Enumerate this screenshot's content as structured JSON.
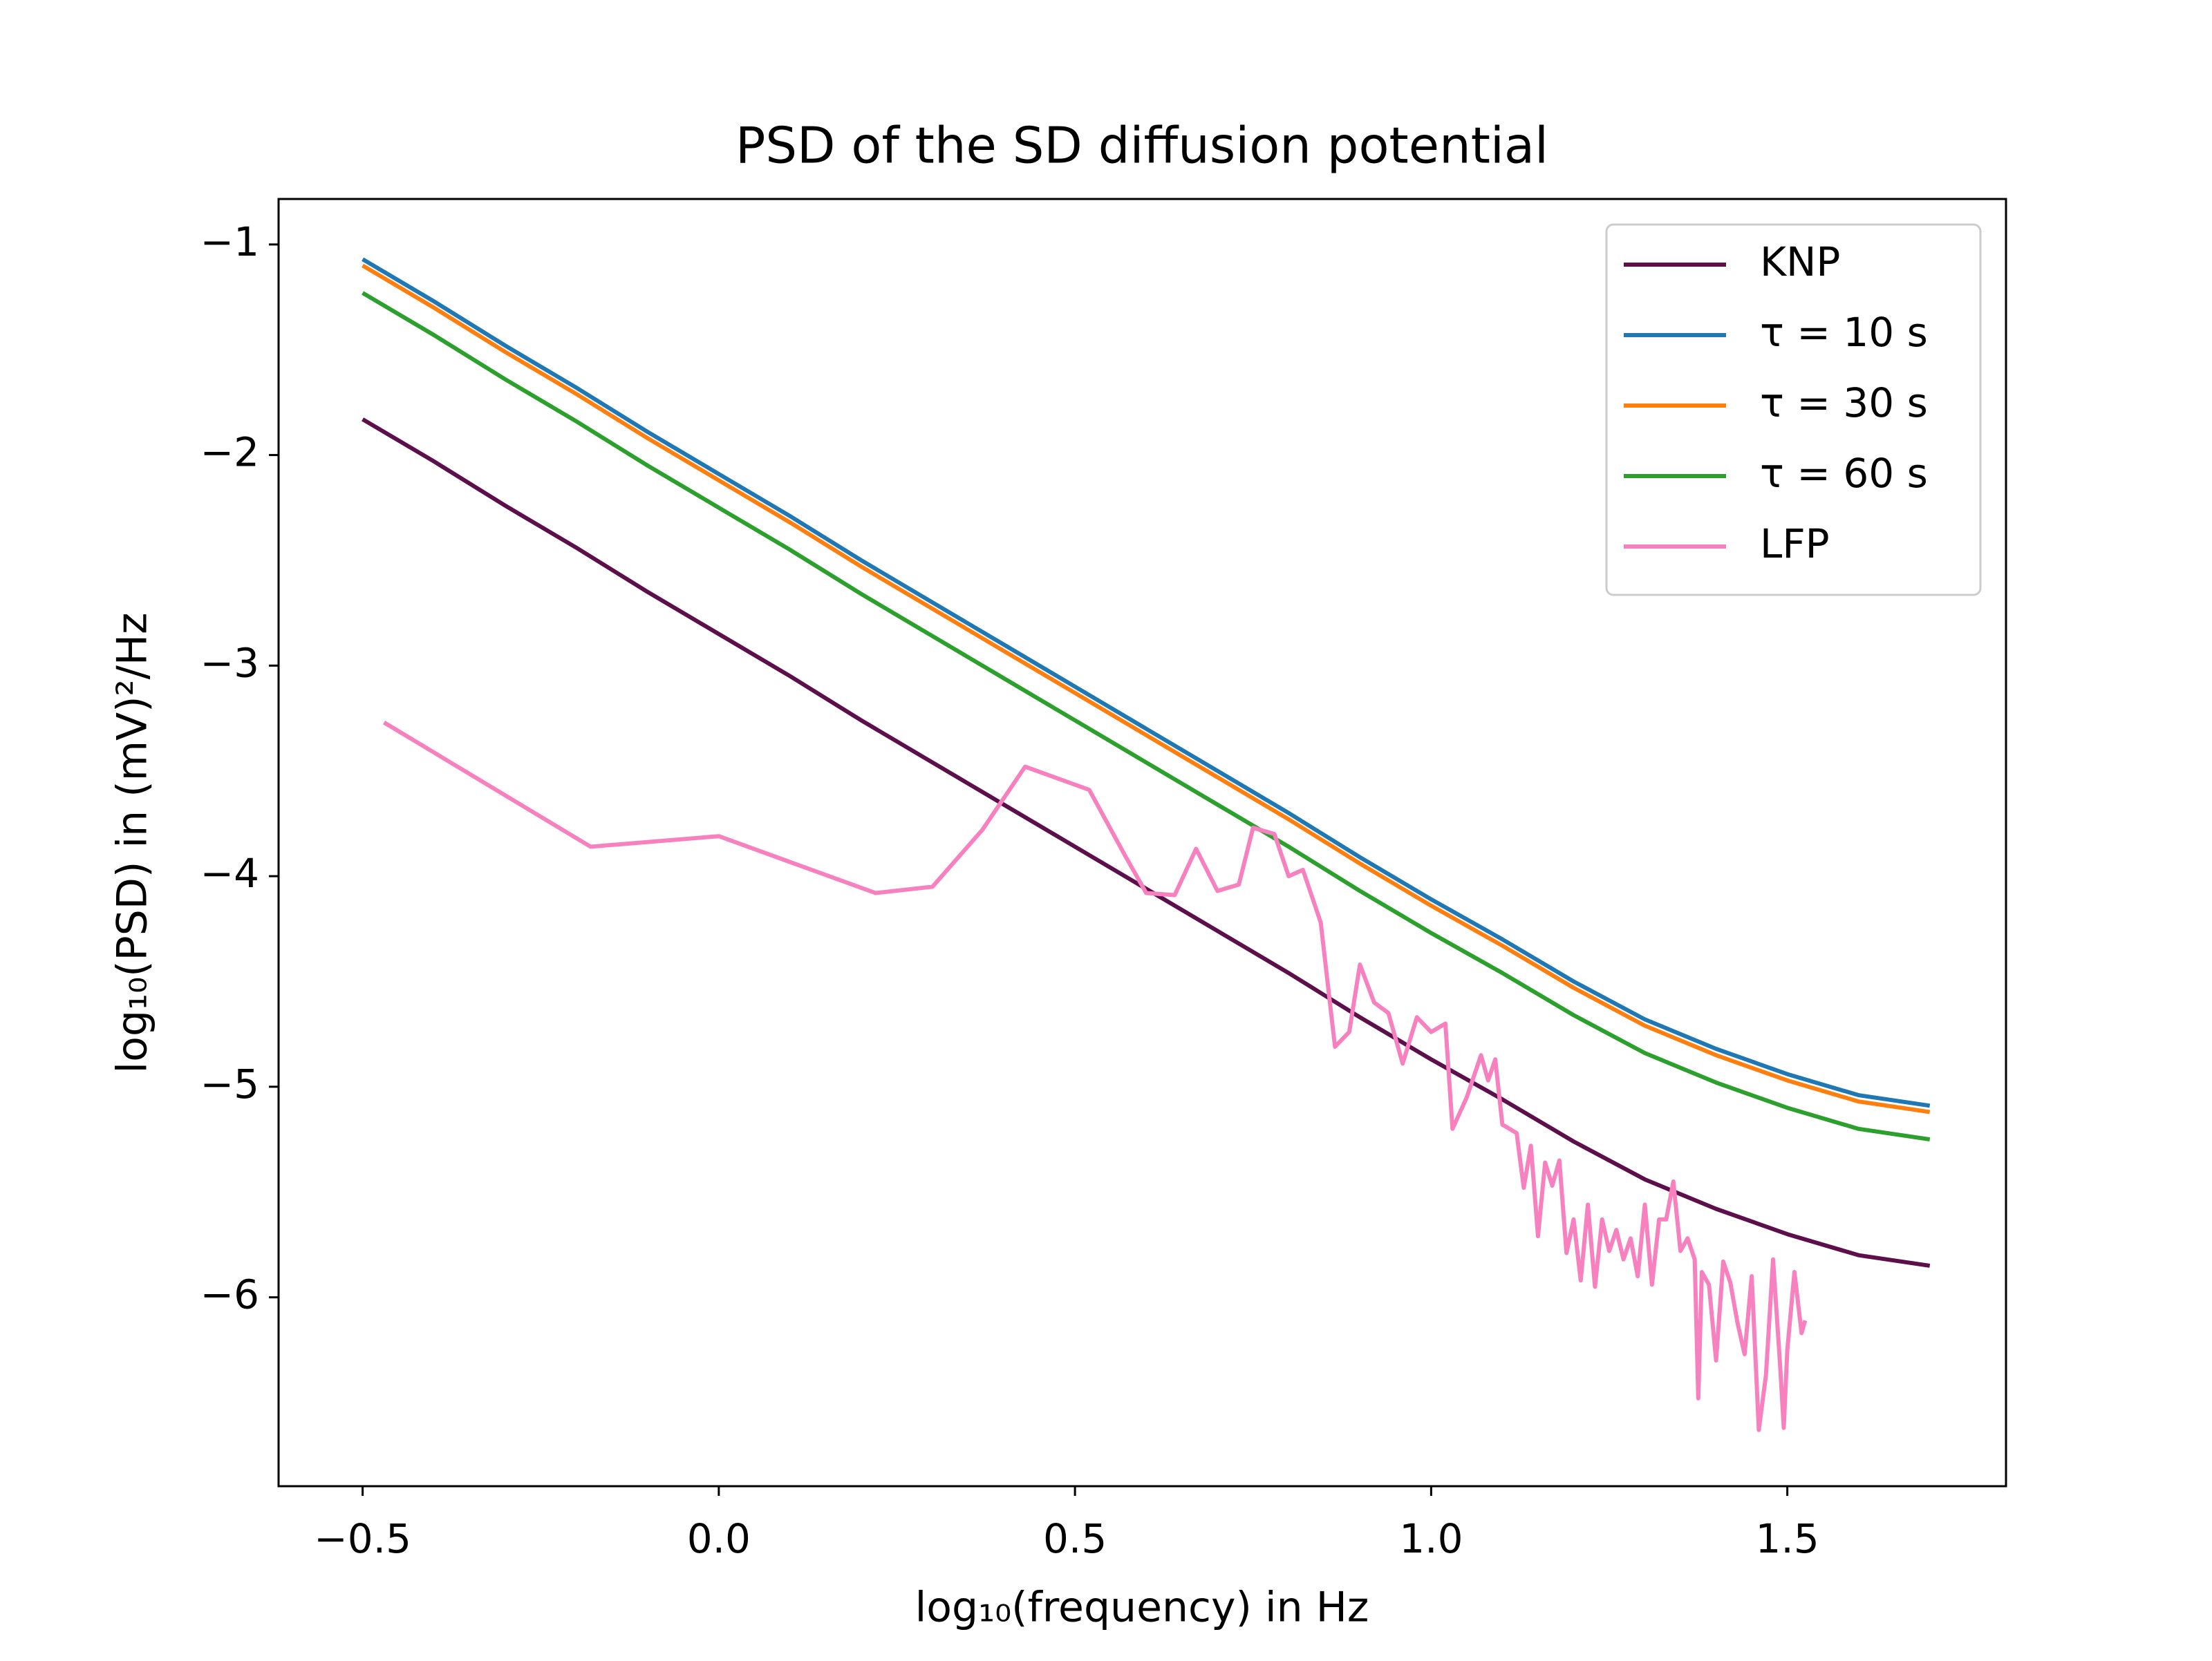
{
  "chart_data": {
    "type": "line",
    "title": "PSD of the SD diffusion potential",
    "x_label": "log₁₀(frequency) in Hz",
    "y_label": "log₁₀(PSD) in (mV)²/Hz",
    "xlim": [
      -0.618,
      1.807
    ],
    "ylim": [
      -6.897,
      -0.784
    ],
    "xticks": [
      {
        "value": -0.5,
        "label": "−0.5"
      },
      {
        "value": 0,
        "label": "0.0"
      },
      {
        "value": 0.5,
        "label": "0.5"
      },
      {
        "value": 1,
        "label": "1.0"
      },
      {
        "value": 1.5,
        "label": "1.5"
      }
    ],
    "yticks": [
      {
        "value": -6,
        "label": "−6"
      },
      {
        "value": -5,
        "label": "−5"
      },
      {
        "value": -4,
        "label": "−4"
      },
      {
        "value": -3,
        "label": "−3"
      },
      {
        "value": -2,
        "label": "−2"
      },
      {
        "value": -1,
        "label": "−1"
      }
    ],
    "grid": false,
    "legend": "upper right",
    "series": [
      {
        "name": "KNP",
        "color": "#5c0f4a",
        "x": [
          -0.5,
          -0.4,
          -0.3,
          -0.2,
          -0.1,
          0,
          0.1,
          0.2,
          0.3,
          0.4,
          0.5,
          0.6,
          0.7,
          0.8,
          0.9,
          1.0,
          1.1,
          1.2,
          1.3,
          1.4,
          1.5,
          1.6,
          1.7
        ],
        "values": [
          -1.83,
          -2.03,
          -2.24,
          -2.44,
          -2.65,
          -2.85,
          -3.05,
          -3.26,
          -3.46,
          -3.66,
          -3.86,
          -4.06,
          -4.26,
          -4.46,
          -4.67,
          -4.87,
          -5.06,
          -5.26,
          -5.44,
          -5.58,
          -5.7,
          -5.8,
          -5.85
        ]
      },
      {
        "name": "τ = 10 s",
        "color": "#1f77b4",
        "x": [
          -0.5,
          -0.4,
          -0.3,
          -0.2,
          -0.1,
          0,
          0.1,
          0.2,
          0.3,
          0.4,
          0.5,
          0.6,
          0.7,
          0.8,
          0.9,
          1.0,
          1.1,
          1.2,
          1.3,
          1.4,
          1.5,
          1.6,
          1.7
        ],
        "values": [
          -1.07,
          -1.27,
          -1.48,
          -1.68,
          -1.89,
          -2.09,
          -2.29,
          -2.5,
          -2.7,
          -2.9,
          -3.1,
          -3.3,
          -3.5,
          -3.7,
          -3.91,
          -4.11,
          -4.3,
          -4.5,
          -4.68,
          -4.82,
          -4.94,
          -5.04,
          -5.09
        ]
      },
      {
        "name": "τ = 30 s",
        "color": "#ff7f0e",
        "x": [
          -0.5,
          -0.4,
          -0.3,
          -0.2,
          -0.1,
          0,
          0.1,
          0.2,
          0.3,
          0.4,
          0.5,
          0.6,
          0.7,
          0.8,
          0.9,
          1.0,
          1.1,
          1.2,
          1.3,
          1.4,
          1.5,
          1.6,
          1.7
        ],
        "values": [
          -1.1,
          -1.3,
          -1.51,
          -1.71,
          -1.92,
          -2.12,
          -2.32,
          -2.53,
          -2.73,
          -2.93,
          -3.13,
          -3.33,
          -3.53,
          -3.73,
          -3.94,
          -4.14,
          -4.33,
          -4.53,
          -4.71,
          -4.85,
          -4.97,
          -5.07,
          -5.12
        ]
      },
      {
        "name": "τ = 60 s",
        "color": "#2ca02c",
        "x": [
          -0.5,
          -0.4,
          -0.3,
          -0.2,
          -0.1,
          0,
          0.1,
          0.2,
          0.3,
          0.4,
          0.5,
          0.6,
          0.7,
          0.8,
          0.9,
          1.0,
          1.1,
          1.2,
          1.3,
          1.4,
          1.5,
          1.6,
          1.7
        ],
        "values": [
          -1.23,
          -1.43,
          -1.64,
          -1.84,
          -2.05,
          -2.25,
          -2.45,
          -2.66,
          -2.86,
          -3.06,
          -3.26,
          -3.46,
          -3.66,
          -3.86,
          -4.07,
          -4.27,
          -4.46,
          -4.66,
          -4.84,
          -4.98,
          -5.1,
          -5.2,
          -5.25
        ]
      },
      {
        "name": "LFP",
        "color": "#f781bf",
        "x": [
          -0.47,
          -0.18,
          0,
          0.22,
          0.3,
          0.37,
          0.43,
          0.52,
          0.57,
          0.6,
          0.64,
          0.67,
          0.7,
          0.73,
          0.75,
          0.78,
          0.8,
          0.82,
          0.845,
          0.865,
          0.885,
          0.9,
          0.92,
          0.94,
          0.96,
          0.98,
          1.0,
          1.02,
          1.03,
          1.05,
          1.07,
          1.08,
          1.09,
          1.1,
          1.12,
          1.13,
          1.14,
          1.15,
          1.16,
          1.17,
          1.18,
          1.19,
          1.2,
          1.21,
          1.22,
          1.23,
          1.24,
          1.25,
          1.26,
          1.27,
          1.28,
          1.29,
          1.3,
          1.31,
          1.32,
          1.33,
          1.34,
          1.35,
          1.36,
          1.37,
          1.375,
          1.38,
          1.39,
          1.4,
          1.41,
          1.42,
          1.43,
          1.44,
          1.45,
          1.46,
          1.47,
          1.48,
          1.49,
          1.495,
          1.5,
          1.51,
          1.52,
          1.525
        ],
        "values": [
          -3.27,
          -3.86,
          -3.81,
          -4.08,
          -4.05,
          -3.78,
          -3.48,
          -3.59,
          -3.9,
          -4.08,
          -4.09,
          -3.87,
          -4.07,
          -4.04,
          -3.77,
          -3.8,
          -4.0,
          -3.97,
          -4.22,
          -4.81,
          -4.74,
          -4.42,
          -4.6,
          -4.65,
          -4.89,
          -4.67,
          -4.74,
          -4.7,
          -5.2,
          -5.05,
          -4.85,
          -4.97,
          -4.87,
          -5.18,
          -5.22,
          -5.48,
          -5.28,
          -5.71,
          -5.36,
          -5.47,
          -5.35,
          -5.79,
          -5.63,
          -5.92,
          -5.56,
          -5.95,
          -5.63,
          -5.78,
          -5.68,
          -5.82,
          -5.72,
          -5.9,
          -5.56,
          -5.94,
          -5.63,
          -5.63,
          -5.45,
          -5.78,
          -5.72,
          -5.82,
          -6.48,
          -5.88,
          -5.94,
          -6.3,
          -5.83,
          -5.93,
          -6.12,
          -6.27,
          -5.9,
          -6.63,
          -6.37,
          -5.82,
          -6.33,
          -6.62,
          -6.25,
          -5.88,
          -6.17,
          -6.11
        ]
      }
    ]
  }
}
